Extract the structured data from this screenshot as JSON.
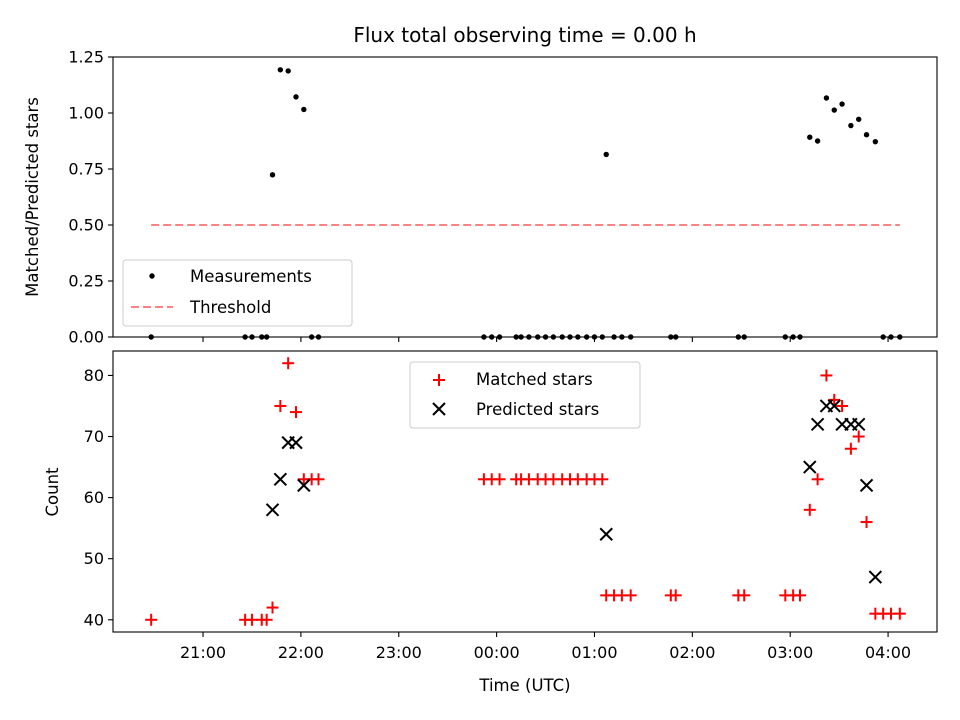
{
  "chart_data": [
    {
      "type": "scatter",
      "title": "Flux total observing time = 0.00 h",
      "xlabel": "",
      "ylabel": "Matched/Predicted stars",
      "ylim": [
        0,
        1.25
      ],
      "yticks": [
        "0.00",
        "0.25",
        "0.50",
        "0.75",
        "1.00",
        "1.25"
      ],
      "xlim": [
        20.08,
        28.5
      ],
      "legend_position": "lower-left",
      "series": [
        {
          "name": "Measurements",
          "marker": "dot",
          "color": "#000000",
          "x": [
            20.47,
            21.43,
            21.5,
            21.6,
            21.65,
            21.71,
            21.79,
            21.87,
            21.95,
            22.03,
            22.11,
            22.18,
            23.87,
            23.95,
            24.03,
            24.2,
            24.25,
            24.33,
            24.42,
            24.5,
            24.58,
            24.67,
            24.75,
            24.83,
            24.92,
            25.0,
            25.08,
            25.12,
            25.2,
            25.28,
            25.37,
            25.78,
            25.83,
            26.47,
            26.53,
            26.95,
            27.03,
            27.1,
            27.2,
            27.28,
            27.37,
            27.45,
            27.53,
            27.62,
            27.7,
            27.78,
            27.87,
            27.95,
            28.03,
            28.12
          ],
          "y": [
            0,
            0,
            0,
            0,
            0,
            0.724,
            1.193,
            1.188,
            1.072,
            1.016,
            0,
            0,
            0,
            0,
            0,
            0,
            0,
            0,
            0,
            0,
            0,
            0,
            0,
            0,
            0,
            0,
            0,
            0.815,
            0,
            0,
            0,
            0,
            0,
            0,
            0,
            0,
            0,
            0,
            0.892,
            0.875,
            1.067,
            1.013,
            1.04,
            0.944,
            0.972,
            0.903,
            0.872,
            0,
            0,
            0
          ]
        },
        {
          "name": "Threshold",
          "style": "dashed",
          "color": "#ff8080",
          "x": [
            20.47,
            28.12
          ],
          "y": [
            0.5,
            0.5
          ]
        }
      ]
    },
    {
      "type": "scatter",
      "title": "",
      "xlabel": "Time (UTC)",
      "ylabel": "Count",
      "ylim": [
        38,
        84
      ],
      "yticks": [
        "40",
        "50",
        "60",
        "70",
        "80"
      ],
      "xlim": [
        20.08,
        28.5
      ],
      "xticks": [
        {
          "value": 21,
          "label": "21:00"
        },
        {
          "value": 22,
          "label": "22:00"
        },
        {
          "value": 23,
          "label": "23:00"
        },
        {
          "value": 24,
          "label": "00:00"
        },
        {
          "value": 25,
          "label": "01:00"
        },
        {
          "value": 26,
          "label": "02:00"
        },
        {
          "value": 27,
          "label": "03:00"
        },
        {
          "value": 28,
          "label": "04:00"
        }
      ],
      "legend_position": "upper-center",
      "series": [
        {
          "name": "Matched stars",
          "marker": "plus",
          "color": "#ff0000",
          "x": [
            20.47,
            21.43,
            21.5,
            21.6,
            21.65,
            21.71,
            21.79,
            21.87,
            21.95,
            22.03,
            22.11,
            22.18,
            23.87,
            23.95,
            24.03,
            24.2,
            24.25,
            24.33,
            24.42,
            24.5,
            24.58,
            24.67,
            24.75,
            24.83,
            24.92,
            25.0,
            25.08,
            25.12,
            25.2,
            25.28,
            25.37,
            25.78,
            25.83,
            26.47,
            26.53,
            26.95,
            27.03,
            27.1,
            27.2,
            27.28,
            27.37,
            27.45,
            27.53,
            27.62,
            27.7,
            27.78,
            27.87,
            27.95,
            28.03,
            28.12
          ],
          "y": [
            40,
            40,
            40,
            40,
            40,
            42,
            75,
            82,
            74,
            63,
            63,
            63,
            63,
            63,
            63,
            63,
            63,
            63,
            63,
            63,
            63,
            63,
            63,
            63,
            63,
            63,
            63,
            44,
            44,
            44,
            44,
            44,
            44,
            44,
            44,
            44,
            44,
            44,
            58,
            63,
            80,
            76,
            75,
            68,
            70,
            56,
            41,
            41,
            41,
            41
          ]
        },
        {
          "name": "Predicted stars",
          "marker": "x",
          "color": "#000000",
          "x": [
            21.71,
            21.79,
            21.87,
            21.95,
            22.03,
            25.12,
            27.2,
            27.28,
            27.37,
            27.45,
            27.53,
            27.62,
            27.7,
            27.78,
            27.87
          ],
          "y": [
            58,
            63,
            69,
            69,
            62,
            54,
            65,
            72,
            75,
            75,
            72,
            72,
            72,
            62,
            47
          ]
        }
      ]
    }
  ]
}
